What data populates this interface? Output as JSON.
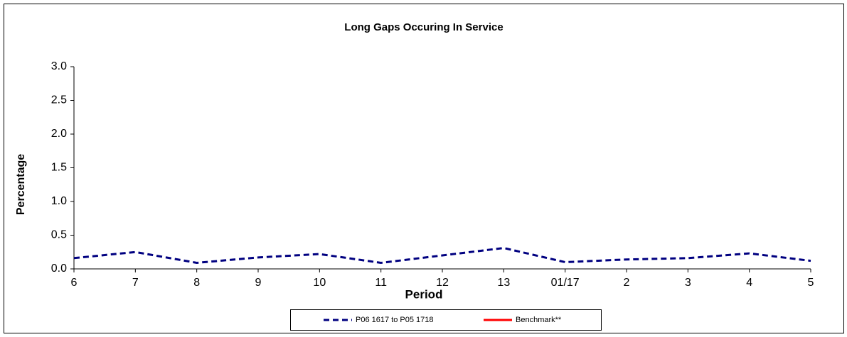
{
  "chart_data": {
    "type": "line",
    "title": "Long Gaps Occuring In Service",
    "x_label": "Period",
    "y_label": "Percentage",
    "categories": [
      "6",
      "7",
      "8",
      "9",
      "10",
      "11",
      "12",
      "13",
      "01/17",
      "2",
      "3",
      "4",
      "5"
    ],
    "series": [
      {
        "name": "P06 1617 to P05 1718",
        "color": "#000080",
        "dash": true,
        "values": [
          0.16,
          0.25,
          0.09,
          0.17,
          0.22,
          0.09,
          0.2,
          0.31,
          0.1,
          0.14,
          0.16,
          0.23,
          0.12
        ]
      },
      {
        "name": "Benchmark**",
        "color": "#ff0000",
        "dash": false,
        "values": [
          null,
          null,
          null,
          null,
          null,
          null,
          null,
          null,
          null,
          null,
          null,
          null,
          null
        ]
      }
    ],
    "ylim": [
      0,
      3
    ],
    "yticks": [
      {
        "value": 0,
        "label": "0.0"
      },
      {
        "value": 0.5,
        "label": "0.5"
      },
      {
        "value": 1,
        "label": "1.0"
      },
      {
        "value": 1.5,
        "label": "1.5"
      },
      {
        "value": 2,
        "label": "2.0"
      },
      {
        "value": 2.5,
        "label": "2.5"
      },
      {
        "value": 3,
        "label": "3.0"
      }
    ],
    "grid": false,
    "legend": "bottom"
  }
}
